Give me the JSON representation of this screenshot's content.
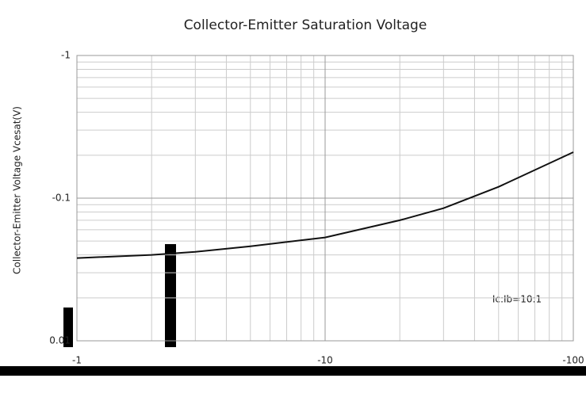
{
  "chart_data": {
    "type": "line",
    "title": "Collector-Emitter Saturation Voltage",
    "y_label": "Collector-Emitter Voltage   Vcesat(V)",
    "annotation": "Ic:Ib=10:1",
    "x": [
      -1,
      -2,
      -3,
      -5,
      -10,
      -20,
      -30,
      -50,
      -100
    ],
    "series": [
      {
        "name": "Vcesat",
        "color": "#111111",
        "values": [
          -0.038,
          -0.04,
          -0.042,
          -0.046,
          -0.053,
          -0.07,
          -0.085,
          -0.12,
          -0.21
        ]
      }
    ],
    "xlim": [
      -1,
      -100
    ],
    "xticks": [
      -1,
      -10,
      -100
    ],
    "ylim": [
      -0.01,
      -1
    ],
    "yticks": [
      -1,
      -0.1,
      {
        "value": -0.01,
        "label": "0.01"
      }
    ],
    "log_x": true,
    "log_y": true,
    "grid": true,
    "minor_grid": true
  }
}
